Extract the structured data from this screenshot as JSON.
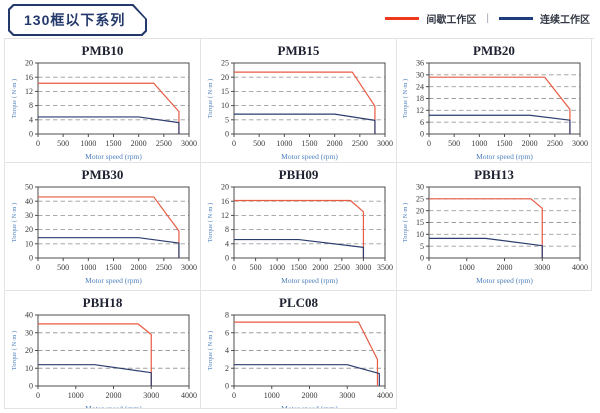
{
  "header": {
    "title": "130框以下系列"
  },
  "legend": {
    "separator": "|",
    "items": [
      {
        "label": "间歇工作区",
        "color": "#ee3a1c"
      },
      {
        "label": "连续工作区",
        "color": "#1f3d7c"
      }
    ]
  },
  "colors": {
    "intermittent_line": "#e85a42",
    "continuous_line": "#2b3d6f",
    "gridline": "#9e9e9e",
    "frame": "#4d4d4d",
    "tick_text": "#3a3a3a",
    "axis_label": "#4f81bd"
  },
  "chart_data": [
    {
      "type": "line",
      "title": "PMB10",
      "xlabel": "Motor speed (rpm)",
      "ylabel": "Torque ( N·m )",
      "xlim": [
        0,
        3000
      ],
      "xstep": 500,
      "ylim": [
        0,
        20
      ],
      "ystep": 4,
      "series": [
        {
          "name": "间歇工作区",
          "role": "intermittent",
          "points": [
            [
              0,
              14.3
            ],
            [
              2300,
              14.3
            ],
            [
              2800,
              6.3
            ],
            [
              2800,
              0
            ]
          ]
        },
        {
          "name": "连续工作区",
          "role": "continuous",
          "points": [
            [
              0,
              4.8
            ],
            [
              2000,
              4.8
            ],
            [
              2800,
              3.2
            ],
            [
              2800,
              0
            ]
          ]
        }
      ]
    },
    {
      "type": "line",
      "title": "PMB15",
      "xlabel": "Motor speed (rpm)",
      "ylabel": "Torque ( N·m )",
      "xlim": [
        0,
        3000
      ],
      "xstep": 500,
      "ylim": [
        0,
        25
      ],
      "ystep": 5,
      "series": [
        {
          "name": "间歇工作区",
          "role": "intermittent",
          "points": [
            [
              0,
              21.8
            ],
            [
              2350,
              21.8
            ],
            [
              2800,
              9.8
            ],
            [
              2800,
              0
            ]
          ]
        },
        {
          "name": "连续工作区",
          "role": "continuous",
          "points": [
            [
              0,
              7
            ],
            [
              2000,
              7
            ],
            [
              2800,
              4.8
            ],
            [
              2800,
              0
            ]
          ]
        }
      ]
    },
    {
      "type": "line",
      "title": "PMB20",
      "xlabel": "Motor speed (rpm)",
      "ylabel": "Torque ( N·m )",
      "xlim": [
        0,
        3000
      ],
      "xstep": 500,
      "ylim": [
        0,
        36
      ],
      "ystep": 6,
      "series": [
        {
          "name": "间歇工作区",
          "role": "intermittent",
          "points": [
            [
              0,
              28.8
            ],
            [
              2300,
              28.8
            ],
            [
              2800,
              12.5
            ],
            [
              2800,
              0
            ]
          ]
        },
        {
          "name": "连续工作区",
          "role": "continuous",
          "points": [
            [
              0,
              9.5
            ],
            [
              2000,
              9.5
            ],
            [
              2800,
              7
            ],
            [
              2800,
              0
            ]
          ]
        }
      ]
    },
    {
      "type": "line",
      "title": "PMB30",
      "xlabel": "Motor speed (rpm)",
      "ylabel": "Torque ( N·m )",
      "xlim": [
        0,
        3000
      ],
      "xstep": 500,
      "ylim": [
        0,
        50
      ],
      "ystep": 10,
      "series": [
        {
          "name": "间歇工作区",
          "role": "intermittent",
          "points": [
            [
              0,
              43
            ],
            [
              2300,
              43
            ],
            [
              2800,
              19
            ],
            [
              2800,
              0
            ]
          ]
        },
        {
          "name": "连续工作区",
          "role": "continuous",
          "points": [
            [
              0,
              14.3
            ],
            [
              2000,
              14.3
            ],
            [
              2800,
              10.5
            ],
            [
              2800,
              0
            ]
          ]
        }
      ]
    },
    {
      "type": "line",
      "title": "PBH09",
      "xlabel": "Motor speed (rpm)",
      "ylabel": "Torque ( N·m )",
      "xlim": [
        0,
        3500
      ],
      "xstep": 500,
      "ylim": [
        0,
        20
      ],
      "ystep": 4,
      "series": [
        {
          "name": "间歇工作区",
          "role": "intermittent",
          "points": [
            [
              0,
              16.2
            ],
            [
              2700,
              16.2
            ],
            [
              3000,
              13
            ],
            [
              3000,
              0
            ]
          ]
        },
        {
          "name": "连续工作区",
          "role": "continuous",
          "points": [
            [
              0,
              5.2
            ],
            [
              1500,
              5.2
            ],
            [
              3000,
              3
            ],
            [
              3000,
              0
            ]
          ]
        }
      ]
    },
    {
      "type": "line",
      "title": "PBH13",
      "xlabel": "Motor speed (rpm)",
      "ylabel": "Torque ( N·m )",
      "xlim": [
        0,
        4000
      ],
      "xstep": 1000,
      "ylim": [
        0,
        30
      ],
      "ystep": 5,
      "series": [
        {
          "name": "间歇工作区",
          "role": "intermittent",
          "points": [
            [
              0,
              25
            ],
            [
              2700,
              25
            ],
            [
              3000,
              21
            ],
            [
              3000,
              0
            ]
          ]
        },
        {
          "name": "连续工作区",
          "role": "continuous",
          "points": [
            [
              0,
              8.3
            ],
            [
              1500,
              8.3
            ],
            [
              3000,
              5.2
            ],
            [
              3000,
              0
            ]
          ]
        }
      ]
    },
    {
      "type": "line",
      "title": "PBH18",
      "xlabel": "Motor speed (rpm)",
      "ylabel": "Torque ( N·m )",
      "xlim": [
        0,
        4000
      ],
      "xstep": 1000,
      "ylim": [
        0,
        40
      ],
      "ystep": 10,
      "series": [
        {
          "name": "间歇工作区",
          "role": "intermittent",
          "points": [
            [
              0,
              35
            ],
            [
              2650,
              35
            ],
            [
              3000,
              29
            ],
            [
              3000,
              0
            ]
          ]
        },
        {
          "name": "连续工作区",
          "role": "continuous",
          "points": [
            [
              0,
              12
            ],
            [
              1500,
              12
            ],
            [
              3000,
              7.5
            ],
            [
              3000,
              0
            ]
          ]
        }
      ]
    },
    {
      "type": "line",
      "title": "PLC08",
      "xlabel": "Motor speed (rpm)",
      "ylabel": "Torque ( N·m )",
      "xlim": [
        0,
        4000
      ],
      "xstep": 1000,
      "ylim": [
        0,
        8
      ],
      "ystep": 2,
      "series": [
        {
          "name": "间歇工作区",
          "role": "intermittent",
          "points": [
            [
              0,
              7.2
            ],
            [
              3300,
              7.2
            ],
            [
              3800,
              3
            ],
            [
              3800,
              0
            ]
          ]
        },
        {
          "name": "连续工作区",
          "role": "continuous",
          "points": [
            [
              0,
              2.4
            ],
            [
              3000,
              2.4
            ],
            [
              3850,
              1.4
            ],
            [
              3850,
              0
            ]
          ]
        }
      ]
    }
  ]
}
